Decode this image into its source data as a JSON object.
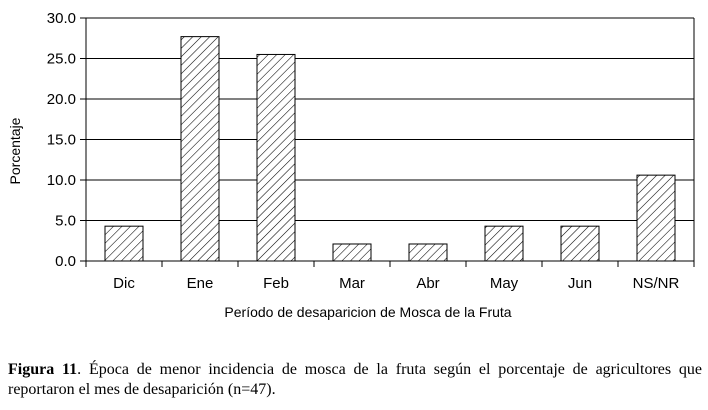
{
  "chart_data": {
    "type": "bar",
    "categories": [
      "Dic",
      "Ene",
      "Feb",
      "Mar",
      "Abr",
      "May",
      "Jun",
      "NS/NR"
    ],
    "values": [
      4.3,
      27.7,
      25.5,
      2.1,
      2.1,
      4.3,
      4.3,
      10.6
    ],
    "xlabel": "Período de desaparicion de Mosca de la Fruta",
    "ylabel": "Porcentaje",
    "ylim": [
      0,
      30
    ],
    "yticks": [
      "0.0",
      "5.0",
      "10.0",
      "15.0",
      "20.0",
      "25.0",
      "30.0"
    ],
    "grid": true,
    "bar_fill": "diagonal-hatch",
    "colors": {
      "bar_stroke": "#000000",
      "hatch": "#000000",
      "grid": "#000000",
      "background": "#ffffff"
    }
  },
  "caption": {
    "label": "Figura 11",
    "text": ". Época de menor incidencia de mosca de la fruta según el porcentaje de agricultores que reportaron el mes de desaparición (n=47)."
  }
}
